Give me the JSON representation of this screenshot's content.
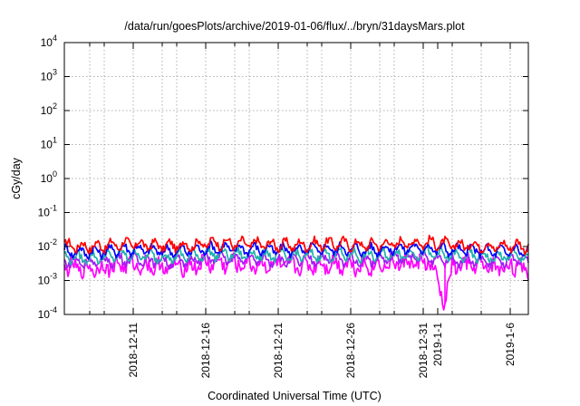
{
  "chart_data": {
    "type": "line",
    "title": "/data/run/goesPlots/archive/2019-01-06/flux/../bryn/31daysMars.plot",
    "xlabel": "Coordinated Universal Time (UTC)",
    "ylabel": "cGy/day",
    "y_scale": "log",
    "ylim": [
      0.0001,
      10000
    ],
    "xlim": [
      "2018-12-06T06:00",
      "2019-01-07T06:00"
    ],
    "grid": true,
    "y_ticks": [
      {
        "value": 0.0001,
        "base": "10",
        "exp": "-4"
      },
      {
        "value": 0.001,
        "base": "10",
        "exp": "-3"
      },
      {
        "value": 0.01,
        "base": "10",
        "exp": "-2"
      },
      {
        "value": 0.1,
        "base": "10",
        "exp": "-1"
      },
      {
        "value": 1,
        "base": "10",
        "exp": "0"
      },
      {
        "value": 10,
        "base": "10",
        "exp": "1"
      },
      {
        "value": 100,
        "base": "10",
        "exp": "2"
      },
      {
        "value": 1000,
        "base": "10",
        "exp": "3"
      },
      {
        "value": 10000,
        "base": "10",
        "exp": "4"
      }
    ],
    "x_ticks": [
      {
        "date": "2018-12-11",
        "label": "2018-12-11"
      },
      {
        "date": "2018-12-16",
        "label": "2018-12-16"
      },
      {
        "date": "2018-12-21",
        "label": "2018-12-21"
      },
      {
        "date": "2018-12-26",
        "label": "2018-12-26"
      },
      {
        "date": "2018-12-31",
        "label": "2018-12-31"
      },
      {
        "date": "2019-01-01",
        "label": "2019-1-1"
      },
      {
        "date": "2019-01-06",
        "label": "2019-1-6"
      }
    ],
    "x_grid_dates": [
      "2018-12-08",
      "2018-12-09",
      "2018-12-11",
      "2018-12-13",
      "2018-12-14",
      "2018-12-16",
      "2018-12-18",
      "2018-12-19",
      "2018-12-21",
      "2018-12-23",
      "2018-12-24",
      "2018-12-26",
      "2018-12-28",
      "2018-12-29",
      "2018-12-31",
      "2019-01-02",
      "2019-01-04",
      "2019-01-06"
    ],
    "series": [
      {
        "color": "#ff0000",
        "values": [
          {
            "x": "2018-12-06T06:00",
            "y": 0.011
          },
          {
            "x": "2018-12-07T12:00",
            "y": 0.01
          },
          {
            "x": "2018-12-09T00:00",
            "y": 0.0105
          },
          {
            "x": "2018-12-10T12:00",
            "y": 0.012
          },
          {
            "x": "2018-12-12T00:00",
            "y": 0.011
          },
          {
            "x": "2018-12-13T12:00",
            "y": 0.0105
          },
          {
            "x": "2018-12-15T00:00",
            "y": 0.011
          },
          {
            "x": "2018-12-16T12:00",
            "y": 0.013
          },
          {
            "x": "2018-12-18T00:00",
            "y": 0.012
          },
          {
            "x": "2018-12-19T12:00",
            "y": 0.012
          },
          {
            "x": "2018-12-21T00:00",
            "y": 0.011
          },
          {
            "x": "2018-12-22T12:00",
            "y": 0.011
          },
          {
            "x": "2018-12-24T00:00",
            "y": 0.012
          },
          {
            "x": "2018-12-25T12:00",
            "y": 0.012
          },
          {
            "x": "2018-12-27T00:00",
            "y": 0.011
          },
          {
            "x": "2018-12-28T12:00",
            "y": 0.012
          },
          {
            "x": "2018-12-30T00:00",
            "y": 0.013
          },
          {
            "x": "2018-12-31T12:00",
            "y": 0.013
          },
          {
            "x": "2019-01-02T00:00",
            "y": 0.011
          },
          {
            "x": "2019-01-03T12:00",
            "y": 0.011
          },
          {
            "x": "2019-01-05T00:00",
            "y": 0.01
          },
          {
            "x": "2019-01-06T12:00",
            "y": 0.011
          },
          {
            "x": "2019-01-07T06:00",
            "y": 0.0095
          }
        ]
      },
      {
        "color": "#0000ff",
        "values": [
          {
            "x": "2018-12-06T06:00",
            "y": 0.0075
          },
          {
            "x": "2018-12-07T12:00",
            "y": 0.0068
          },
          {
            "x": "2018-12-09T00:00",
            "y": 0.0072
          },
          {
            "x": "2018-12-10T12:00",
            "y": 0.0085
          },
          {
            "x": "2018-12-12T00:00",
            "y": 0.0078
          },
          {
            "x": "2018-12-13T12:00",
            "y": 0.0072
          },
          {
            "x": "2018-12-15T00:00",
            "y": 0.0078
          },
          {
            "x": "2018-12-16T12:00",
            "y": 0.009
          },
          {
            "x": "2018-12-18T00:00",
            "y": 0.0085
          },
          {
            "x": "2018-12-19T12:00",
            "y": 0.0085
          },
          {
            "x": "2018-12-21T00:00",
            "y": 0.0078
          },
          {
            "x": "2018-12-22T12:00",
            "y": 0.0078
          },
          {
            "x": "2018-12-24T00:00",
            "y": 0.0085
          },
          {
            "x": "2018-12-25T12:00",
            "y": 0.0085
          },
          {
            "x": "2018-12-27T00:00",
            "y": 0.0078
          },
          {
            "x": "2018-12-28T12:00",
            "y": 0.0085
          },
          {
            "x": "2018-12-30T00:00",
            "y": 0.009
          },
          {
            "x": "2018-12-31T12:00",
            "y": 0.009
          },
          {
            "x": "2019-01-02T00:00",
            "y": 0.0078
          },
          {
            "x": "2019-01-03T12:00",
            "y": 0.0078
          },
          {
            "x": "2019-01-05T00:00",
            "y": 0.007
          },
          {
            "x": "2019-01-06T12:00",
            "y": 0.0078
          },
          {
            "x": "2019-01-07T06:00",
            "y": 0.0068
          }
        ]
      },
      {
        "color": "#20b2aa",
        "values": [
          {
            "x": "2018-12-06T06:00",
            "y": 0.0052
          },
          {
            "x": "2018-12-07T12:00",
            "y": 0.0046
          },
          {
            "x": "2018-12-09T00:00",
            "y": 0.0049
          },
          {
            "x": "2018-12-10T12:00",
            "y": 0.0058
          },
          {
            "x": "2018-12-12T00:00",
            "y": 0.0053
          },
          {
            "x": "2018-12-13T12:00",
            "y": 0.0049
          },
          {
            "x": "2018-12-15T00:00",
            "y": 0.0053
          },
          {
            "x": "2018-12-16T12:00",
            "y": 0.0062
          },
          {
            "x": "2018-12-18T00:00",
            "y": 0.0058
          },
          {
            "x": "2018-12-19T12:00",
            "y": 0.0058
          },
          {
            "x": "2018-12-21T00:00",
            "y": 0.0053
          },
          {
            "x": "2018-12-22T12:00",
            "y": 0.0053
          },
          {
            "x": "2018-12-24T00:00",
            "y": 0.0058
          },
          {
            "x": "2018-12-25T12:00",
            "y": 0.0058
          },
          {
            "x": "2018-12-27T00:00",
            "y": 0.0053
          },
          {
            "x": "2018-12-28T12:00",
            "y": 0.0058
          },
          {
            "x": "2018-12-30T00:00",
            "y": 0.0062
          },
          {
            "x": "2018-12-31T12:00",
            "y": 0.0062
          },
          {
            "x": "2019-01-02T00:00",
            "y": 0.0053
          },
          {
            "x": "2019-01-03T12:00",
            "y": 0.0053
          },
          {
            "x": "2019-01-05T00:00",
            "y": 0.0048
          },
          {
            "x": "2019-01-06T12:00",
            "y": 0.0053
          },
          {
            "x": "2019-01-07T06:00",
            "y": 0.0046
          }
        ]
      },
      {
        "color": "#a020f0",
        "values": [
          {
            "x": "2018-12-06T06:00",
            "y": 0.0038
          },
          {
            "x": "2018-12-07T12:00",
            "y": 0.0034
          },
          {
            "x": "2018-12-09T00:00",
            "y": 0.0036
          },
          {
            "x": "2018-12-10T12:00",
            "y": 0.0043
          },
          {
            "x": "2018-12-12T00:00",
            "y": 0.0039
          },
          {
            "x": "2018-12-13T12:00",
            "y": 0.0036
          },
          {
            "x": "2018-12-15T00:00",
            "y": 0.0039
          },
          {
            "x": "2018-12-16T12:00",
            "y": 0.0046
          },
          {
            "x": "2018-12-18T00:00",
            "y": 0.0043
          },
          {
            "x": "2018-12-19T12:00",
            "y": 0.0043
          },
          {
            "x": "2018-12-21T00:00",
            "y": 0.0039
          },
          {
            "x": "2018-12-22T12:00",
            "y": 0.0039
          },
          {
            "x": "2018-12-24T00:00",
            "y": 0.0043
          },
          {
            "x": "2018-12-25T12:00",
            "y": 0.0043
          },
          {
            "x": "2018-12-27T00:00",
            "y": 0.0039
          },
          {
            "x": "2018-12-28T12:00",
            "y": 0.0043
          },
          {
            "x": "2018-12-30T00:00",
            "y": 0.0046
          },
          {
            "x": "2018-12-31T12:00",
            "y": 0.0046
          },
          {
            "x": "2019-01-02T00:00",
            "y": 0.0039
          },
          {
            "x": "2019-01-03T12:00",
            "y": 0.0039
          },
          {
            "x": "2019-01-05T00:00",
            "y": 0.0035
          },
          {
            "x": "2019-01-06T12:00",
            "y": 0.0039
          },
          {
            "x": "2019-01-07T06:00",
            "y": 0.0034
          }
        ]
      },
      {
        "color": "#ff00ff",
        "values": [
          {
            "x": "2018-12-06T06:00",
            "y": 0.0026
          },
          {
            "x": "2018-12-07T12:00",
            "y": 0.0022
          },
          {
            "x": "2018-12-09T00:00",
            "y": 0.0024
          },
          {
            "x": "2018-12-10T12:00",
            "y": 0.003
          },
          {
            "x": "2018-12-12T00:00",
            "y": 0.0027
          },
          {
            "x": "2018-12-13T12:00",
            "y": 0.0024
          },
          {
            "x": "2018-12-15T00:00",
            "y": 0.0027
          },
          {
            "x": "2018-12-16T12:00",
            "y": 0.0033
          },
          {
            "x": "2018-12-18T00:00",
            "y": 0.003
          },
          {
            "x": "2018-12-19T12:00",
            "y": 0.003
          },
          {
            "x": "2018-12-21T00:00",
            "y": 0.0027
          },
          {
            "x": "2018-12-22T12:00",
            "y": 0.0027
          },
          {
            "x": "2018-12-24T00:00",
            "y": 0.003
          },
          {
            "x": "2018-12-25T12:00",
            "y": 0.003
          },
          {
            "x": "2018-12-27T00:00",
            "y": 0.0027
          },
          {
            "x": "2018-12-28T12:00",
            "y": 0.003
          },
          {
            "x": "2018-12-30T00:00",
            "y": 0.0033
          },
          {
            "x": "2018-12-31T12:00",
            "y": 0.0033
          },
          {
            "x": "2019-01-01T12:00",
            "y": 0.0002
          },
          {
            "x": "2019-01-02T00:00",
            "y": 0.0027
          },
          {
            "x": "2019-01-03T12:00",
            "y": 0.0027
          },
          {
            "x": "2019-01-05T00:00",
            "y": 0.0023
          },
          {
            "x": "2019-01-06T12:00",
            "y": 0.0027
          },
          {
            "x": "2019-01-07T06:00",
            "y": 0.0018
          }
        ]
      }
    ]
  }
}
